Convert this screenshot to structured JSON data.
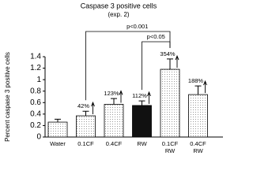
{
  "chart_data": {
    "type": "bar",
    "title": "Caspase 3 positive cells",
    "subtitle": "(exp. 2)",
    "y_label": "Percent caspase 3 positive cells",
    "categories": [
      "Water",
      "0.1CF",
      "0.4CF",
      "RW",
      "0.1CF RW",
      "0.4CF RW"
    ],
    "values": [
      0.26,
      0.37,
      0.57,
      0.55,
      1.18,
      0.74
    ],
    "errors": [
      0.05,
      0.08,
      0.1,
      0.08,
      0.18,
      0.15
    ],
    "colors": [
      "#ffffff",
      "#ffffff",
      "#ffffff",
      "#111111",
      "#ffffff",
      "#ffffff"
    ],
    "bar_labels": [
      null,
      "42%",
      "123%",
      "112%",
      "354%",
      "188%"
    ],
    "brackets": [
      {
        "label": "p<0.001",
        "from": "0.1CF",
        "to": "0.1CF RW"
      },
      {
        "label": "p<0.05",
        "from": "RW",
        "to": "0.1CF RW"
      }
    ],
    "ylim": [
      0,
      1.4
    ],
    "yticks": [
      0,
      0.2,
      0.4,
      0.6,
      0.8,
      1,
      1.2,
      1.4
    ]
  }
}
